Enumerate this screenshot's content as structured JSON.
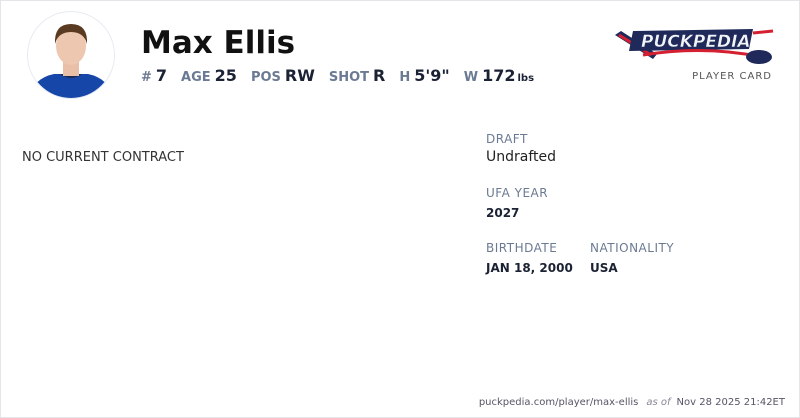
{
  "player": {
    "name": "Max Ellis",
    "number_label": "#",
    "number": "7",
    "age_label": "AGE",
    "age": "25",
    "pos_label": "POS",
    "pos": "RW",
    "shot_label": "SHOT",
    "shot": "R",
    "height_label": "H",
    "height": "5'9\"",
    "weight_label": "W",
    "weight": "172",
    "weight_unit": "lbs"
  },
  "brand": {
    "logo_text": "PuckPedia",
    "subtitle": "PLAYER CARD",
    "colors": {
      "navy": "#1f2a5a",
      "red": "#d42030"
    }
  },
  "contract": {
    "status": "NO CURRENT CONTRACT"
  },
  "details": {
    "draft_label": "DRAFT",
    "draft": "Undrafted",
    "ufa_label": "UFA YEAR",
    "ufa": "2027",
    "birthdate_label": "BIRTHDATE",
    "birthdate": "JAN 18, 2000",
    "nationality_label": "NATIONALITY",
    "nationality": "USA"
  },
  "footer": {
    "url": "puckpedia.com/player/max-ellis",
    "as_of": "as of",
    "timestamp": "Nov 28 2025 21:42ET"
  }
}
